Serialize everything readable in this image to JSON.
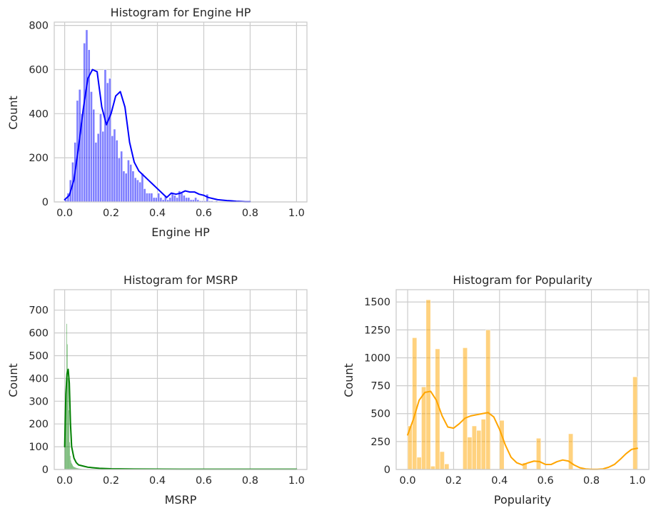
{
  "chart_data": [
    {
      "id": "engine_hp",
      "type": "bar",
      "title": "Histogram for Engine HP",
      "xlabel": "Engine HP",
      "ylabel": "Count",
      "xlim": [
        -0.045,
        1.045
      ],
      "ylim": [
        0,
        815
      ],
      "xticks": [
        0.0,
        0.2,
        0.4,
        0.6,
        0.8,
        1.0
      ],
      "xtick_labels": [
        "0.0",
        "0.2",
        "0.4",
        "0.6",
        "0.8",
        "1.0"
      ],
      "yticks": [
        0,
        200,
        400,
        600,
        800
      ],
      "ytick_labels": [
        "0",
        "200",
        "400",
        "600",
        "800"
      ],
      "grid": true,
      "color": "#0000ff",
      "bin_width": 0.01,
      "bins_start": 0.0,
      "values": [
        10,
        40,
        100,
        180,
        270,
        460,
        510,
        400,
        720,
        780,
        690,
        500,
        420,
        270,
        310,
        400,
        320,
        600,
        540,
        560,
        300,
        330,
        280,
        200,
        230,
        140,
        130,
        190,
        170,
        140,
        110,
        100,
        90,
        130,
        60,
        40,
        40,
        40,
        20,
        20,
        40,
        20,
        10,
        30,
        10,
        20,
        40,
        30,
        20,
        50,
        40,
        30,
        20,
        20,
        10,
        10,
        20,
        10,
        5,
        5,
        5,
        35,
        5,
        5,
        3,
        5,
        2,
        2,
        2,
        2
      ],
      "kde": {
        "x": [
          0.0,
          0.02,
          0.04,
          0.06,
          0.08,
          0.1,
          0.12,
          0.14,
          0.16,
          0.18,
          0.2,
          0.22,
          0.24,
          0.26,
          0.28,
          0.3,
          0.32,
          0.34,
          0.36,
          0.38,
          0.4,
          0.42,
          0.44,
          0.46,
          0.48,
          0.5,
          0.52,
          0.54,
          0.56,
          0.58,
          0.6,
          0.62,
          0.64,
          0.66,
          0.68,
          0.7,
          0.72,
          0.74,
          0.76,
          0.78,
          0.8
        ],
        "y": [
          10,
          30,
          100,
          250,
          420,
          560,
          600,
          590,
          430,
          350,
          400,
          480,
          500,
          430,
          270,
          180,
          140,
          120,
          100,
          80,
          60,
          40,
          20,
          40,
          35,
          40,
          50,
          45,
          45,
          35,
          30,
          20,
          15,
          10,
          8,
          6,
          5,
          3,
          2,
          1,
          1
        ]
      }
    },
    {
      "id": "msrp",
      "type": "bar",
      "title": "Histogram for MSRP",
      "xlabel": "MSRP",
      "ylabel": "Count",
      "xlim": [
        -0.045,
        1.045
      ],
      "ylim": [
        0,
        790
      ],
      "xticks": [
        0.0,
        0.2,
        0.4,
        0.6,
        0.8,
        1.0
      ],
      "xtick_labels": [
        "0.0",
        "0.2",
        "0.4",
        "0.6",
        "0.8",
        "1.0"
      ],
      "yticks": [
        0,
        100,
        200,
        300,
        400,
        500,
        600,
        700
      ],
      "ytick_labels": [
        "0",
        "100",
        "200",
        "300",
        "400",
        "500",
        "600",
        "700"
      ],
      "grid": true,
      "color": "#008000",
      "bin_width": 0.0025,
      "bins_start": 0.0,
      "values": [
        100,
        200,
        350,
        640,
        550,
        400,
        420,
        260,
        120,
        60,
        40,
        30,
        25,
        20,
        15,
        12,
        10,
        10,
        8,
        8,
        6,
        6,
        5,
        5,
        4,
        4,
        3,
        3,
        3,
        2,
        2,
        2,
        2,
        2,
        2,
        2,
        1,
        1,
        1,
        1,
        1,
        1,
        1,
        1,
        1,
        1,
        1,
        1,
        1,
        1,
        1,
        1,
        1,
        1,
        1,
        1,
        1,
        1,
        1,
        1
      ],
      "kde": {
        "x": [
          0.0,
          0.005,
          0.01,
          0.015,
          0.02,
          0.025,
          0.03,
          0.04,
          0.05,
          0.06,
          0.08,
          0.1,
          0.12,
          0.15,
          0.2,
          0.3,
          0.5,
          0.8,
          1.0
        ],
        "y": [
          100,
          330,
          420,
          440,
          380,
          200,
          100,
          50,
          30,
          20,
          15,
          10,
          8,
          5,
          3,
          2,
          1,
          1,
          1
        ]
      }
    },
    {
      "id": "popularity",
      "type": "bar",
      "title": "Histogram for Popularity",
      "xlabel": "Popularity",
      "ylabel": "Count",
      "xlim": [
        -0.05,
        1.05
      ],
      "ylim": [
        0,
        1610
      ],
      "xticks": [
        0.0,
        0.2,
        0.4,
        0.6,
        0.8,
        1.0
      ],
      "xtick_labels": [
        "0.0",
        "0.2",
        "0.4",
        "0.6",
        "0.8",
        "1.0"
      ],
      "yticks": [
        0,
        250,
        500,
        750,
        1000,
        1250,
        1500
      ],
      "ytick_labels": [
        "0",
        "250",
        "500",
        "750",
        "1000",
        "1250",
        "1500"
      ],
      "grid": true,
      "color": "#ffa500",
      "bin_width": 0.02,
      "bins_start": 0.0,
      "values": [
        390,
        1180,
        110,
        740,
        1520,
        30,
        1080,
        160,
        50,
        0,
        0,
        0,
        1090,
        290,
        390,
        350,
        450,
        1250,
        0,
        0,
        440,
        0,
        0,
        0,
        0,
        60,
        0,
        0,
        280,
        0,
        0,
        0,
        0,
        0,
        0,
        320,
        0,
        0,
        0,
        0,
        0,
        0,
        0,
        0,
        0,
        0,
        0,
        0,
        0,
        830
      ],
      "kde": {
        "x": [
          0.0,
          0.025,
          0.05,
          0.075,
          0.1,
          0.125,
          0.15,
          0.175,
          0.2,
          0.225,
          0.25,
          0.275,
          0.3,
          0.325,
          0.35,
          0.375,
          0.4,
          0.425,
          0.45,
          0.475,
          0.5,
          0.525,
          0.55,
          0.575,
          0.6,
          0.625,
          0.65,
          0.675,
          0.7,
          0.725,
          0.75,
          0.775,
          0.8,
          0.825,
          0.85,
          0.875,
          0.9,
          0.925,
          0.95,
          0.975,
          1.0
        ],
        "y": [
          310,
          450,
          620,
          690,
          700,
          620,
          480,
          380,
          370,
          410,
          460,
          480,
          490,
          500,
          510,
          470,
          360,
          220,
          110,
          60,
          40,
          60,
          75,
          70,
          45,
          45,
          70,
          85,
          75,
          40,
          15,
          5,
          2,
          2,
          5,
          20,
          45,
          90,
          140,
          180,
          190
        ]
      }
    }
  ]
}
